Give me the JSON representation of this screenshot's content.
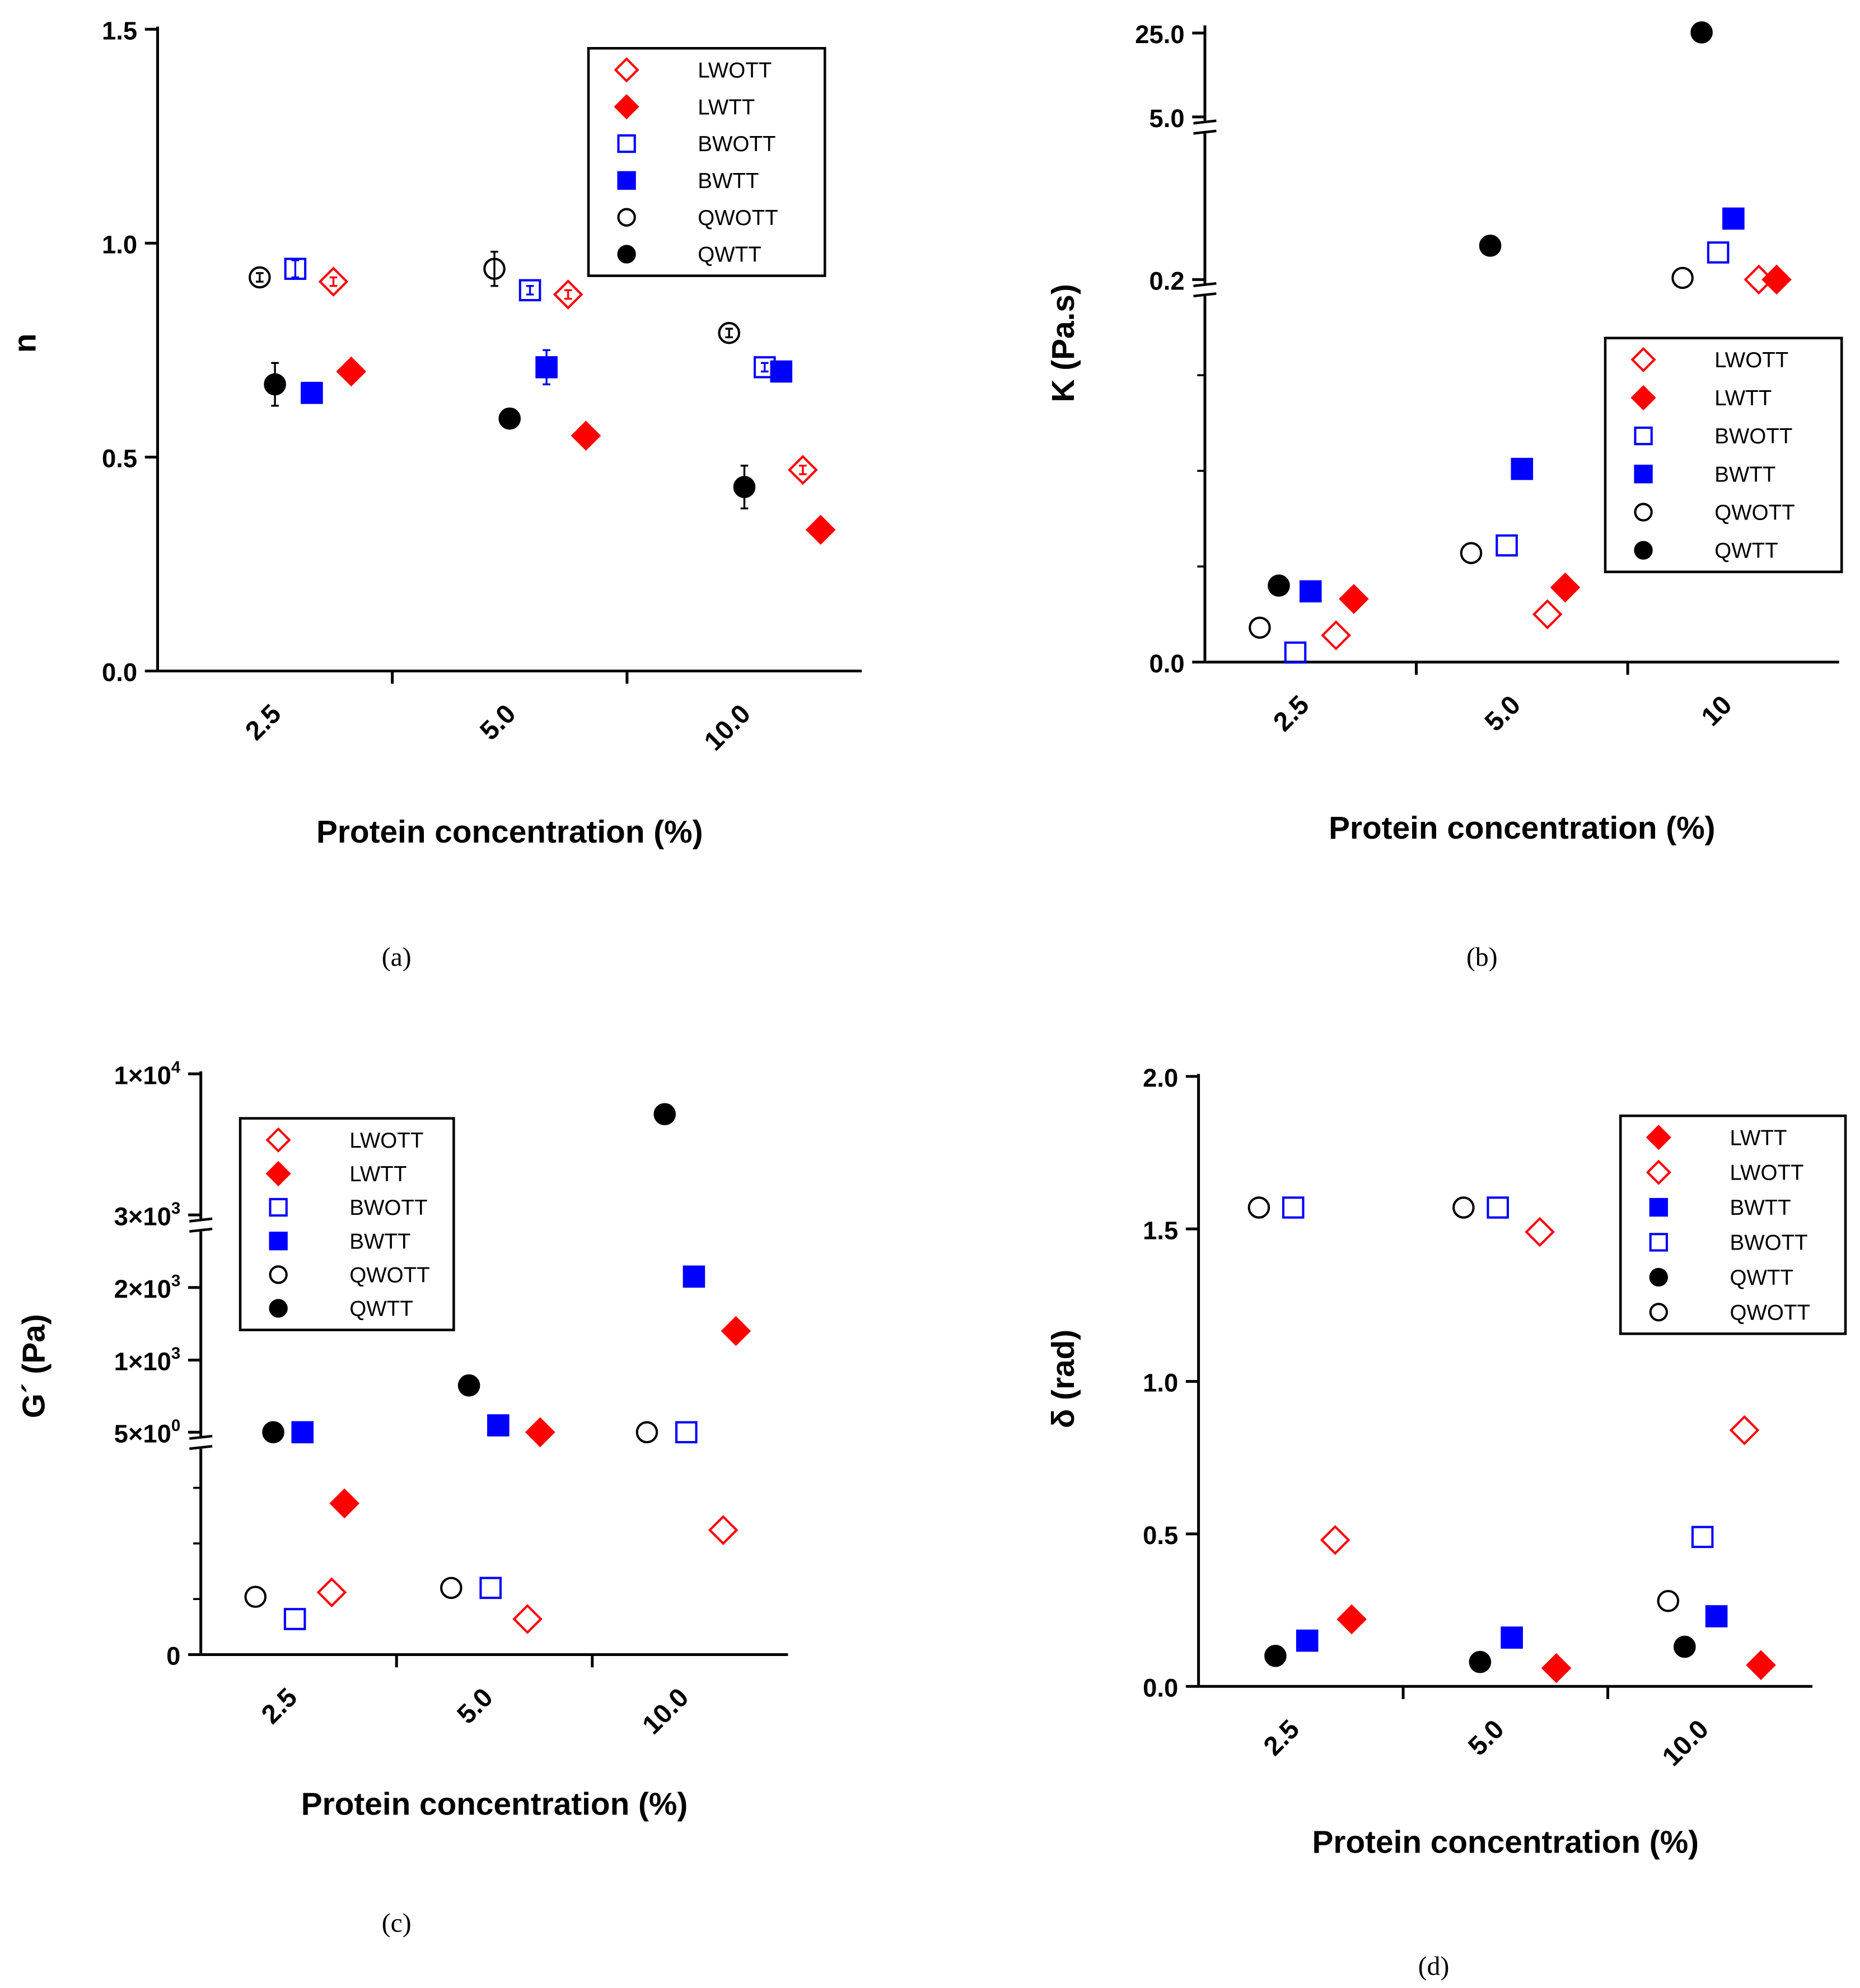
{
  "colors": {
    "red": "#ff0000",
    "blue": "#0000ff",
    "black": "#000000"
  },
  "chart_data": [
    {
      "panel": "(a)",
      "type": "scatter",
      "ylabel": "n",
      "xlabel": "Protein concentration (%)",
      "categories": [
        "2.5",
        "5.0",
        "10.0"
      ],
      "y_ticks": [
        "0.0",
        "0.5",
        "1.0",
        "1.5"
      ],
      "ylim": [
        0,
        1.5
      ],
      "legend_position": "top-right",
      "series": [
        {
          "name": "LWOTT",
          "marker": "diamond-open",
          "color": "red",
          "values": [
            0.91,
            0.88,
            0.47
          ],
          "errors": [
            0.01,
            0.01,
            0.01
          ]
        },
        {
          "name": "LWTT",
          "marker": "diamond-filled",
          "color": "red",
          "values": [
            0.7,
            0.55,
            0.33
          ],
          "errors": [
            0,
            0,
            0
          ]
        },
        {
          "name": "BWOTT",
          "marker": "square-open",
          "color": "blue",
          "values": [
            0.94,
            0.89,
            0.71
          ],
          "errors": [
            0.02,
            0.01,
            0.01
          ]
        },
        {
          "name": "BWTT",
          "marker": "square-filled",
          "color": "blue",
          "values": [
            0.65,
            0.71,
            0.7
          ],
          "errors": [
            0.01,
            0.04,
            0
          ]
        },
        {
          "name": "QWOTT",
          "marker": "circle-open",
          "color": "black",
          "values": [
            0.92,
            0.94,
            0.79
          ],
          "errors": [
            0.01,
            0.04,
            0.01
          ]
        },
        {
          "name": "QWTT",
          "marker": "circle-filled",
          "color": "black",
          "values": [
            0.67,
            0.59,
            0.43
          ],
          "errors": [
            0.05,
            0.01,
            0.05
          ]
        }
      ]
    },
    {
      "panel": "(b)",
      "type": "scatter",
      "ylabel": "K (Pa.s)",
      "xlabel": "Protein concentration (%)",
      "categories": [
        "2.5",
        "5.0",
        "10"
      ],
      "y_ticks": [
        "0.0",
        "0.2",
        "5.0",
        "25.0"
      ],
      "axis_breaks": [
        0.2,
        5.0
      ],
      "legend_position": "middle-right",
      "series": [
        {
          "name": "LWOTT",
          "marker": "diamond-open",
          "color": "red",
          "values": [
            0.014,
            0.025,
            0.2
          ]
        },
        {
          "name": "LWTT",
          "marker": "diamond-filled",
          "color": "red",
          "values": [
            0.033,
            0.039,
            0.2
          ]
        },
        {
          "name": "BWOTT",
          "marker": "square-open",
          "color": "blue",
          "values": [
            0.005,
            0.061,
            1.0
          ]
        },
        {
          "name": "BWTT",
          "marker": "square-filled",
          "color": "blue",
          "values": [
            0.037,
            0.101,
            2.0
          ]
        },
        {
          "name": "QWOTT",
          "marker": "circle-open",
          "color": "black",
          "values": [
            0.018,
            0.057,
            0.25
          ]
        },
        {
          "name": "QWTT",
          "marker": "circle-filled",
          "color": "black",
          "values": [
            0.04,
            1.2,
            24.0
          ]
        }
      ]
    },
    {
      "panel": "(c)",
      "type": "scatter",
      "ylabel": "G´ (Pa)",
      "xlabel": "Protein concentration (%)",
      "categories": [
        "2.5",
        "5.0",
        "10.0"
      ],
      "y_ticks": [
        "0",
        "5×10⁰",
        "1×10³",
        "2×10³",
        "3×10³",
        "1×10⁴"
      ],
      "axis_breaks": [
        5,
        3000
      ],
      "legend_position": "top-left",
      "series": [
        {
          "name": "LWOTT",
          "marker": "diamond-open",
          "color": "red",
          "values": [
            1.4,
            0.8,
            2.8
          ]
        },
        {
          "name": "LWTT",
          "marker": "diamond-filled",
          "color": "red",
          "values": [
            3.4,
            5,
            1400
          ]
        },
        {
          "name": "BWOTT",
          "marker": "square-open",
          "color": "blue",
          "values": [
            0.8,
            1.5,
            5
          ]
        },
        {
          "name": "BWTT",
          "marker": "square-filled",
          "color": "blue",
          "values": [
            5,
            100,
            2150
          ]
        },
        {
          "name": "QWOTT",
          "marker": "circle-open",
          "color": "black",
          "values": [
            1.3,
            1.5,
            5
          ]
        },
        {
          "name": "QWTT",
          "marker": "circle-filled",
          "color": "black",
          "values": [
            5,
            650,
            8000
          ]
        }
      ]
    },
    {
      "panel": "(d)",
      "type": "scatter",
      "ylabel": "δ (rad)",
      "xlabel": "Protein concentration (%)",
      "categories": [
        "2.5",
        "5.0",
        "10.0"
      ],
      "y_ticks": [
        "0.0",
        "0.5",
        "1.0",
        "1.5",
        "2.0"
      ],
      "ylim": [
        0,
        2.0
      ],
      "legend_position": "top-right",
      "series": [
        {
          "name": "LWTT",
          "marker": "diamond-filled",
          "color": "red",
          "values": [
            0.22,
            0.06,
            0.07
          ]
        },
        {
          "name": "LWOTT",
          "marker": "diamond-open",
          "color": "red",
          "values": [
            0.48,
            1.49,
            0.84
          ]
        },
        {
          "name": "BWTT",
          "marker": "square-filled",
          "color": "blue",
          "values": [
            0.15,
            0.16,
            0.23
          ]
        },
        {
          "name": "BWOTT",
          "marker": "square-open",
          "color": "blue",
          "values": [
            1.57,
            1.57,
            0.49
          ]
        },
        {
          "name": "QWTT",
          "marker": "circle-filled",
          "color": "black",
          "values": [
            0.1,
            0.08,
            0.13
          ]
        },
        {
          "name": "QWOTT",
          "marker": "circle-open",
          "color": "black",
          "values": [
            1.57,
            1.57,
            0.28
          ]
        }
      ]
    }
  ]
}
